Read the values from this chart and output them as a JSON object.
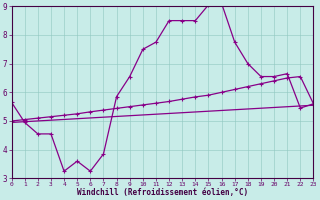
{
  "xlabel": "Windchill (Refroidissement éolien,°C)",
  "bg_color": "#c8ece8",
  "line_color": "#880088",
  "xmin": 0,
  "xmax": 23,
  "ymin": 3,
  "ymax": 9,
  "yticks": [
    3,
    4,
    5,
    6,
    7,
    8,
    9
  ],
  "xticks": [
    0,
    1,
    2,
    3,
    4,
    5,
    6,
    7,
    8,
    9,
    10,
    11,
    12,
    13,
    14,
    15,
    16,
    17,
    18,
    19,
    20,
    21,
    22,
    23
  ],
  "line1_x": [
    0,
    1,
    2,
    3,
    4,
    5,
    6,
    7,
    8,
    9,
    10,
    11,
    12,
    13,
    14,
    15,
    16,
    17,
    18,
    19,
    20,
    21,
    22,
    23
  ],
  "line1_y": [
    5.65,
    4.95,
    4.55,
    4.55,
    3.25,
    3.6,
    3.25,
    3.85,
    5.85,
    6.55,
    7.5,
    7.75,
    8.5,
    8.5,
    8.5,
    9.05,
    9.1,
    7.75,
    7.0,
    6.55,
    6.55,
    6.65,
    5.45,
    5.6
  ],
  "line2_x": [
    0,
    1,
    2,
    3,
    4,
    5,
    6,
    7,
    8,
    9,
    10,
    11,
    12,
    13,
    14,
    15,
    16,
    17,
    18,
    19,
    20,
    21,
    22,
    23
  ],
  "line2_y": [
    5.0,
    5.05,
    5.1,
    5.15,
    5.2,
    5.25,
    5.32,
    5.38,
    5.44,
    5.5,
    5.56,
    5.62,
    5.68,
    5.76,
    5.84,
    5.9,
    6.0,
    6.1,
    6.2,
    6.3,
    6.4,
    6.5,
    6.55,
    5.6
  ],
  "line3_x": [
    0,
    23
  ],
  "line3_y": [
    4.95,
    5.55
  ]
}
